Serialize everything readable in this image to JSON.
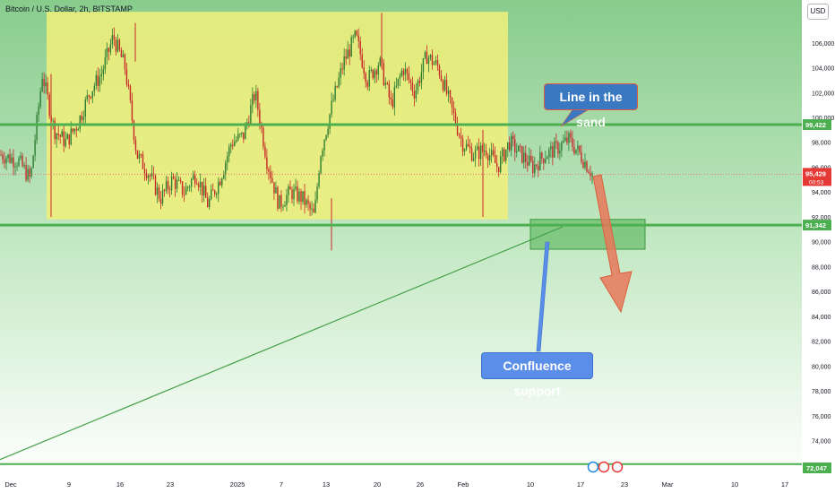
{
  "header": {
    "symbol_title": "Bitcoin / U.S. Dollar, 2h, BITSTAMP",
    "currency_button": "USD"
  },
  "annotations": {
    "line_in_the_sand": "Line in the sand",
    "confluence_support": "Confluence support"
  },
  "colors": {
    "background_top": "#8fd08f",
    "background_bottom": "#ffffff",
    "range_box": "#f1f07a",
    "level_line": "#4caf50",
    "support_zone": "#4caf50",
    "arrow": "#e8785a",
    "candle_up": "#2e7d32",
    "candle_down": "#c62828",
    "price_label_current": "#e53935"
  },
  "chart_data": {
    "type": "candlestick",
    "title": "Bitcoin / U.S. Dollar, 2h, BITSTAMP",
    "xlabel": "",
    "ylabel": "",
    "ylim": [
      72000,
      108500
    ],
    "x_tick_labels": [
      "Dec",
      "9",
      "16",
      "23",
      "2025",
      "7",
      "13",
      "20",
      "26",
      "Feb",
      "10",
      "17",
      "23",
      "Mar",
      "10",
      "17"
    ],
    "y_tick_labels": [
      "74,000",
      "76,000",
      "78,000",
      "80,000",
      "82,000",
      "84,000",
      "86,000",
      "88,000",
      "90,000",
      "92,000",
      "94,000",
      "96,000",
      "98,000",
      "100,000",
      "102,000",
      "104,000",
      "106,000"
    ],
    "y_ticks": [
      74000,
      76000,
      78000,
      80000,
      82000,
      84000,
      86000,
      88000,
      90000,
      92000,
      94000,
      96000,
      98000,
      100000,
      102000,
      104000,
      106000
    ],
    "price_path": [
      [
        0,
        97000
      ],
      [
        0.03,
        96500
      ],
      [
        0.05,
        95000
      ],
      [
        0.07,
        103500
      ],
      [
        0.09,
        99000
      ],
      [
        0.11,
        98000
      ],
      [
        0.13,
        99500
      ],
      [
        0.15,
        102000
      ],
      [
        0.17,
        103500
      ],
      [
        0.19,
        106500
      ],
      [
        0.21,
        104000
      ],
      [
        0.23,
        97000
      ],
      [
        0.25,
        95500
      ],
      [
        0.27,
        93500
      ],
      [
        0.29,
        95000
      ],
      [
        0.31,
        94000
      ],
      [
        0.33,
        95500
      ],
      [
        0.35,
        93000
      ],
      [
        0.37,
        95000
      ],
      [
        0.39,
        98000
      ],
      [
        0.41,
        98500
      ],
      [
        0.43,
        102000
      ],
      [
        0.45,
        96500
      ],
      [
        0.47,
        93000
      ],
      [
        0.49,
        94000
      ],
      [
        0.51,
        93500
      ],
      [
        0.53,
        92000
      ],
      [
        0.54,
        97000
      ],
      [
        0.56,
        101000
      ],
      [
        0.58,
        104500
      ],
      [
        0.6,
        106500
      ],
      [
        0.62,
        103000
      ],
      [
        0.64,
        104500
      ],
      [
        0.66,
        101000
      ],
      [
        0.68,
        104000
      ],
      [
        0.7,
        102000
      ],
      [
        0.72,
        105000
      ],
      [
        0.74,
        104000
      ],
      [
        0.76,
        101000
      ],
      [
        0.78,
        98000
      ],
      [
        0.8,
        97000
      ],
      [
        0.82,
        97500
      ],
      [
        0.84,
        96000
      ],
      [
        0.86,
        98000
      ],
      [
        0.88,
        97000
      ],
      [
        0.9,
        96000
      ],
      [
        0.92,
        97000
      ],
      [
        0.94,
        97500
      ],
      [
        0.96,
        98200
      ],
      [
        0.98,
        97000
      ],
      [
        1.0,
        95500
      ]
    ],
    "levels": {
      "resistance": 99422,
      "support": 91342,
      "current": 95429,
      "bottom_reference": 72047
    },
    "level_labels": {
      "resistance": "99,422",
      "support": "91,342",
      "current": "95,429",
      "current_countdown": "00:53",
      "bottom_reference": "72,047"
    },
    "range_box": {
      "x_start": "Dec 5",
      "x_end": "Feb 6",
      "y_low": 91800,
      "y_high": 108500
    },
    "support_zone": {
      "y_low": 89400,
      "y_high": 91800
    },
    "projection_arrow": {
      "from_price": 95429,
      "to_price": 84500
    },
    "trendline": {
      "from": "Nov 27 · 72,047",
      "to": "Feb 17 · 91,342"
    },
    "grid": false,
    "legend": "none"
  }
}
